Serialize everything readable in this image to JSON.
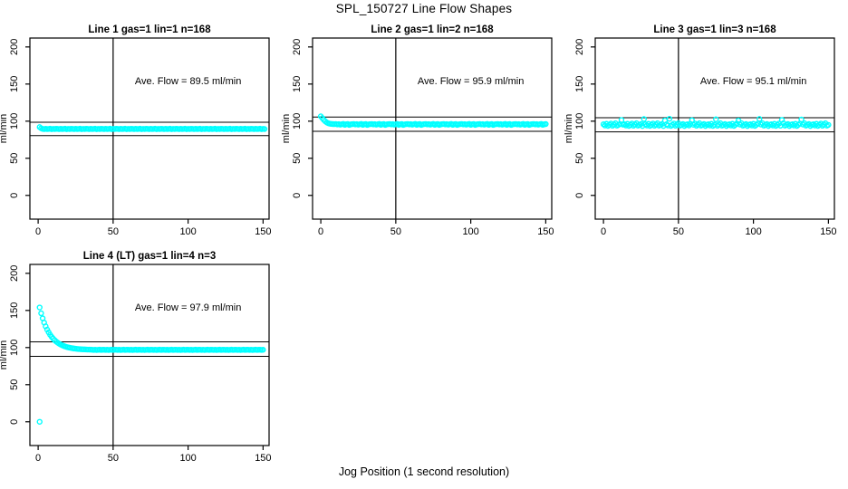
{
  "header": {
    "title": "SPL_150727  Line Flow Shapes"
  },
  "footer": {
    "xlabel": "Jog Position (1 second resolution)"
  },
  "colors": {
    "points": "#00FFFF",
    "axis": "#000000",
    "background": "#FFFFFF"
  },
  "chart_data": {
    "type": "scatter",
    "figure_title": "SPL_150727  Line Flow Shapes",
    "xlabel": "Jog Position (1 second resolution)",
    "ylabel": "ml/min",
    "xlim": [
      -5.5,
      154
    ],
    "ylim": [
      -32,
      212
    ],
    "xticks": [
      0,
      50,
      100,
      150
    ],
    "yticks": [
      0,
      50,
      100,
      150,
      200
    ],
    "grid": false,
    "vline_x": 50,
    "point_color": "#00FFFF",
    "marker": "open-circle",
    "panels": [
      {
        "title": "Line 1 gas=1 lin=1 n=168",
        "ave_flow": 89.5,
        "ave_flow_label": "Ave. Flow =  89.5  ml/min",
        "ref_lines": [
          98.5,
          80.6
        ],
        "x0": 1,
        "dx": 1,
        "y": [
          92.0,
          90.4,
          89.6,
          89.3,
          89.8,
          89.4,
          89.5,
          89.9,
          89.2,
          89.6,
          89.4,
          89.7,
          89.6,
          89.3,
          89.8,
          89.4,
          89.5,
          89.9,
          89.2,
          89.6,
          89.4,
          89.7,
          89.6,
          89.3,
          89.8,
          89.4,
          89.5,
          89.9,
          89.2,
          89.6,
          89.4,
          89.7,
          89.6,
          89.3,
          89.8,
          89.4,
          89.5,
          89.9,
          89.2,
          89.6,
          89.4,
          89.7,
          89.6,
          89.3,
          89.8,
          89.4,
          89.5,
          89.9,
          89.2,
          89.6,
          89.4,
          89.7,
          89.6,
          89.3,
          89.8,
          89.4,
          89.5,
          89.9,
          89.2,
          89.6,
          89.4,
          89.7,
          89.6,
          89.3,
          89.8,
          89.4,
          89.5,
          89.9,
          89.2,
          89.6,
          89.4,
          89.7,
          89.6,
          89.3,
          89.8,
          89.4,
          89.5,
          89.9,
          89.2,
          89.6,
          89.4,
          89.7,
          89.6,
          89.3,
          89.8,
          89.4,
          89.5,
          89.9,
          89.2,
          89.6,
          89.4,
          89.7,
          89.6,
          89.3,
          89.8,
          89.4,
          89.5,
          89.9,
          89.2,
          89.6,
          89.4,
          89.7,
          89.6,
          89.3,
          89.8,
          89.4,
          89.5,
          89.9,
          89.2,
          89.6,
          89.4,
          89.7,
          89.6,
          89.3,
          89.8,
          89.4,
          89.5,
          89.9,
          89.2,
          89.6,
          89.4,
          89.7,
          89.6,
          89.3,
          89.8,
          89.4,
          89.5,
          89.9,
          89.2,
          89.6,
          89.4,
          89.7,
          89.6,
          89.3,
          89.8,
          89.4,
          89.5,
          89.9,
          89.2,
          89.6,
          89.4,
          89.7,
          89.6,
          89.3,
          89.8,
          89.4,
          89.5,
          89.9,
          89.2,
          89.6,
          89.4
        ],
        "extra": []
      },
      {
        "title": "Line 2 gas=1 lin=2 n=168",
        "ave_flow": 95.9,
        "ave_flow_label": "Ave. Flow =  95.9  ml/min",
        "ref_lines": [
          105.5,
          86.3
        ],
        "x0": 0,
        "dx": 1,
        "y": [
          106.5,
          104.2,
          101.8,
          99.8,
          98.2,
          97.2,
          96.6,
          96.3,
          96.1,
          96.0,
          96.2,
          95.6,
          96.0,
          95.3,
          95.9,
          96.3,
          95.1,
          95.8,
          96.1,
          94.9,
          95.7,
          96.0,
          96.2,
          95.6,
          96.0,
          95.3,
          95.9,
          96.3,
          95.1,
          95.8,
          96.1,
          94.9,
          95.7,
          96.0,
          96.2,
          95.6,
          96.0,
          95.3,
          95.9,
          96.3,
          95.1,
          95.8,
          96.1,
          94.9,
          95.7,
          96.0,
          96.2,
          95.6,
          96.0,
          95.3,
          95.9,
          96.3,
          95.1,
          95.8,
          96.1,
          94.9,
          95.7,
          96.0,
          96.2,
          95.6,
          96.0,
          95.3,
          95.9,
          96.3,
          95.1,
          95.8,
          96.1,
          94.9,
          95.7,
          96.0,
          96.2,
          95.6,
          96.0,
          95.3,
          95.9,
          96.3,
          95.1,
          95.8,
          96.1,
          94.9,
          95.7,
          96.0,
          96.2,
          95.6,
          96.0,
          95.3,
          95.9,
          96.3,
          95.1,
          95.8,
          96.1,
          94.9,
          95.7,
          96.0,
          96.2,
          95.6,
          96.0,
          95.3,
          95.9,
          96.3,
          95.1,
          95.8,
          96.1,
          94.9,
          95.7,
          96.0,
          96.2,
          95.6,
          96.0,
          95.3,
          95.9,
          96.3,
          95.1,
          95.8,
          96.1,
          94.9,
          95.7,
          96.0,
          96.2,
          95.6,
          96.0,
          95.3,
          95.9,
          96.3,
          95.1,
          95.8,
          96.1,
          94.9,
          95.7,
          96.0,
          96.2,
          95.6,
          96.0,
          95.3,
          95.9,
          96.3,
          95.1,
          95.8,
          96.1,
          94.9,
          95.7,
          96.0,
          96.2,
          95.6,
          96.0,
          95.3,
          95.9,
          96.3,
          95.1,
          95.8,
          96.1
        ],
        "extra": []
      },
      {
        "title": "Line 3 gas=1 lin=3 n=168",
        "ave_flow": 95.1,
        "ave_flow_label": "Ave. Flow =  95.1  ml/min",
        "ref_lines": [
          104.6,
          85.6
        ],
        "x0": 0,
        "dx": 1,
        "y": [
          95.8,
          94.2,
          96.4,
          93.6,
          95.2,
          96.8,
          93.9,
          95.5,
          97.2,
          94.0,
          95.0,
          96.1,
          101.5,
          95.3,
          95.8,
          94.2,
          96.4,
          93.6,
          95.2,
          96.8,
          93.9,
          95.5,
          97.2,
          94.0,
          95.0,
          96.1,
          93.5,
          102.8,
          95.8,
          94.2,
          96.4,
          93.6,
          95.2,
          96.8,
          93.9,
          95.5,
          97.2,
          94.0,
          95.0,
          96.1,
          93.5,
          100.9,
          95.8,
          94.2,
          103.2,
          93.6,
          95.2,
          96.8,
          93.9,
          95.5,
          97.2,
          94.0,
          95.0,
          96.1,
          93.5,
          95.3,
          95.8,
          94.2,
          96.4,
          101.2,
          95.2,
          96.8,
          93.9,
          95.5,
          97.2,
          94.0,
          95.0,
          96.1,
          93.5,
          95.3,
          95.8,
          94.2,
          96.4,
          93.6,
          95.2,
          102.5,
          93.9,
          95.5,
          97.2,
          94.0,
          95.0,
          96.1,
          93.5,
          95.3,
          95.8,
          94.2,
          96.4,
          93.6,
          95.2,
          96.8,
          100.8,
          95.5,
          97.2,
          94.0,
          95.0,
          96.1,
          93.5,
          95.3,
          95.8,
          94.2,
          96.4,
          93.6,
          95.2,
          96.8,
          103.0,
          95.5,
          97.2,
          94.0,
          95.0,
          96.1,
          93.5,
          95.3,
          95.8,
          94.2,
          96.4,
          93.6,
          95.2,
          96.8,
          93.9,
          101.6,
          97.2,
          94.0,
          95.0,
          96.1,
          93.5,
          95.3,
          95.8,
          94.2,
          96.4,
          93.6,
          95.2,
          96.8,
          102.2,
          95.5,
          97.2,
          94.0,
          95.0,
          96.1,
          93.5,
          95.3,
          95.8,
          94.2,
          96.4,
          93.6,
          95.2,
          96.8,
          93.9,
          95.5,
          97.2,
          94.0,
          95.0
        ],
        "extra": []
      },
      {
        "title": "Line 4 (LT) gas=1 lin=4 n=3",
        "ave_flow": 97.9,
        "ave_flow_label": "Ave. Flow =  97.9  ml/min",
        "ref_lines": [
          107.7,
          88.1
        ],
        "x0": 1,
        "dx": 1,
        "y": [
          154.0,
          146.2,
          139.4,
          133.6,
          128.6,
          124.2,
          120.5,
          117.2,
          114.4,
          112.0,
          109.9,
          108.1,
          106.6,
          105.2,
          104.1,
          103.1,
          102.2,
          101.5,
          100.8,
          100.3,
          99.8,
          99.4,
          99.0,
          98.7,
          98.5,
          98.2,
          98.0,
          97.9,
          97.7,
          97.6,
          97.5,
          97.4,
          97.3,
          97.3,
          97.2,
          97.1,
          96.8,
          97.0,
          96.7,
          96.9,
          97.2,
          96.8,
          97.0,
          97.1,
          96.8,
          97.0,
          96.7,
          96.9,
          97.2,
          96.8,
          97.0,
          97.1,
          96.8,
          97.0,
          96.7,
          96.9,
          97.2,
          96.8,
          97.0,
          97.1,
          96.8,
          97.0,
          96.7,
          96.9,
          97.2,
          96.8,
          97.0,
          97.1,
          96.8,
          97.0,
          96.7,
          96.9,
          97.2,
          96.8,
          97.0,
          97.1,
          96.8,
          97.0,
          96.7,
          96.9,
          97.2,
          96.8,
          97.0,
          97.1,
          96.8,
          97.0,
          96.7,
          96.9,
          97.2,
          96.8,
          97.0,
          97.1,
          96.8,
          97.0,
          96.7,
          96.9,
          97.2,
          96.8,
          97.0,
          97.1,
          96.8,
          97.0,
          96.7,
          96.9,
          97.2,
          96.8,
          97.0,
          97.1,
          96.8,
          97.0,
          96.7,
          96.9,
          97.2,
          96.8,
          97.0,
          97.1,
          96.8,
          97.0,
          96.7,
          96.9,
          97.2,
          96.8,
          97.0,
          97.1,
          96.8,
          97.0,
          96.7,
          96.9,
          97.2,
          96.8,
          97.0,
          97.1,
          96.8,
          97.0,
          96.7,
          96.9,
          97.2,
          96.8,
          97.0,
          97.1,
          96.8,
          97.0,
          96.7,
          96.9,
          97.2,
          96.8,
          97.0,
          97.1,
          96.8,
          97.0
        ],
        "extra": [
          [
            1,
            0.0
          ]
        ]
      }
    ]
  }
}
